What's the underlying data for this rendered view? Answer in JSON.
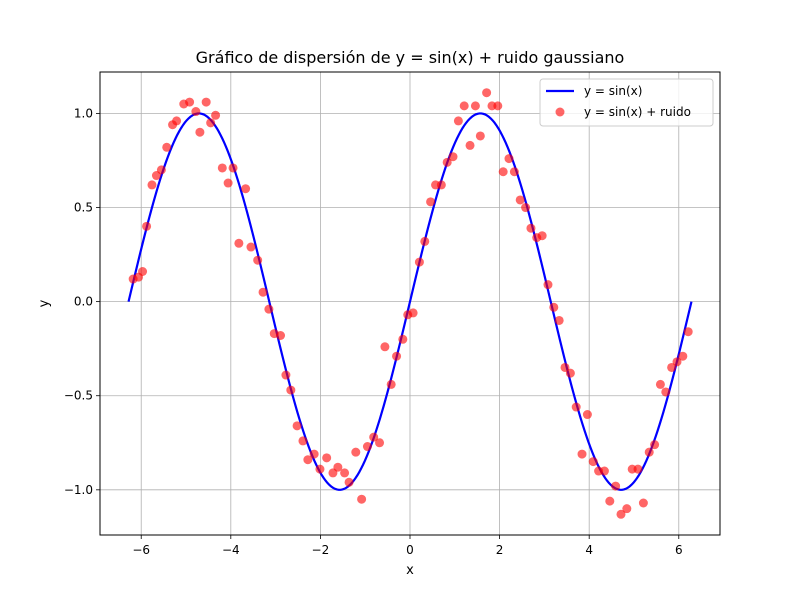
{
  "chart_data": {
    "type": "scatter",
    "title": "Gráfico de dispersión de y = sin(x) + ruido gaussiano",
    "xlabel": "x",
    "ylabel": "y",
    "xlim": [
      -6.92,
      6.92
    ],
    "ylim": [
      -1.24,
      1.22
    ],
    "x_ticks": [
      -6,
      -4,
      -2,
      0,
      2,
      4,
      6
    ],
    "x_tick_labels": [
      "−6",
      "−4",
      "−2",
      "0",
      "2",
      "4",
      "6"
    ],
    "y_ticks": [
      -1.0,
      -0.5,
      0.0,
      0.5,
      1.0
    ],
    "y_tick_labels": [
      "−1.0",
      "−0.5",
      "0.0",
      "0.5",
      "1.0"
    ],
    "grid": true,
    "legend_position": "top-right",
    "colors": {
      "line": "#0000ff",
      "scatter": "#ff0000",
      "grid": "#b0b0b0"
    },
    "series": [
      {
        "name": "y = sin(x)",
        "kind": "line",
        "function": "sin",
        "x_range": [
          -6.283,
          6.283
        ]
      },
      {
        "name": "y = sin(x) + ruido",
        "kind": "scatter",
        "points": [
          [
            -6.18,
            0.12
          ],
          [
            -6.06,
            0.13
          ],
          [
            -5.97,
            0.16
          ],
          [
            -5.88,
            0.4
          ],
          [
            -5.76,
            0.62
          ],
          [
            -5.66,
            0.67
          ],
          [
            -5.55,
            0.7
          ],
          [
            -5.43,
            0.82
          ],
          [
            -5.3,
            0.94
          ],
          [
            -5.21,
            0.96
          ],
          [
            -5.05,
            1.05
          ],
          [
            -4.92,
            1.06
          ],
          [
            -4.78,
            1.01
          ],
          [
            -4.69,
            0.9
          ],
          [
            -4.55,
            1.06
          ],
          [
            -4.45,
            0.95
          ],
          [
            -4.34,
            0.99
          ],
          [
            -4.19,
            0.71
          ],
          [
            -4.06,
            0.63
          ],
          [
            -3.95,
            0.71
          ],
          [
            -3.82,
            0.31
          ],
          [
            -3.67,
            0.6
          ],
          [
            -3.55,
            0.29
          ],
          [
            -3.4,
            0.22
          ],
          [
            -3.28,
            0.05
          ],
          [
            -3.15,
            -0.04
          ],
          [
            -3.03,
            -0.17
          ],
          [
            -2.89,
            -0.18
          ],
          [
            -2.77,
            -0.39
          ],
          [
            -2.66,
            -0.47
          ],
          [
            -2.52,
            -0.66
          ],
          [
            -2.39,
            -0.74
          ],
          [
            -2.28,
            -0.84
          ],
          [
            -2.14,
            -0.81
          ],
          [
            -2.01,
            -0.89
          ],
          [
            -1.86,
            -0.83
          ],
          [
            -1.72,
            -0.91
          ],
          [
            -1.61,
            -0.88
          ],
          [
            -1.46,
            -0.91
          ],
          [
            -1.36,
            -0.96
          ],
          [
            -1.21,
            -0.8
          ],
          [
            -1.08,
            -1.05
          ],
          [
            -0.95,
            -0.77
          ],
          [
            -0.81,
            -0.72
          ],
          [
            -0.68,
            -0.75
          ],
          [
            -0.56,
            -0.24
          ],
          [
            -0.42,
            -0.44
          ],
          [
            -0.3,
            -0.29
          ],
          [
            -0.16,
            -0.2
          ],
          [
            -0.05,
            -0.07
          ],
          [
            0.07,
            -0.06
          ],
          [
            0.21,
            0.21
          ],
          [
            0.33,
            0.32
          ],
          [
            0.46,
            0.53
          ],
          [
            0.57,
            0.62
          ],
          [
            0.7,
            0.62
          ],
          [
            0.83,
            0.74
          ],
          [
            0.96,
            0.77
          ],
          [
            1.08,
            0.96
          ],
          [
            1.21,
            1.04
          ],
          [
            1.34,
            0.83
          ],
          [
            1.46,
            1.04
          ],
          [
            1.57,
            0.88
          ],
          [
            1.71,
            1.11
          ],
          [
            1.83,
            1.04
          ],
          [
            1.96,
            1.04
          ],
          [
            2.08,
            0.69
          ],
          [
            2.21,
            0.76
          ],
          [
            2.33,
            0.69
          ],
          [
            2.46,
            0.54
          ],
          [
            2.58,
            0.5
          ],
          [
            2.7,
            0.39
          ],
          [
            2.83,
            0.34
          ],
          [
            2.95,
            0.35
          ],
          [
            3.08,
            0.09
          ],
          [
            3.21,
            -0.03
          ],
          [
            3.33,
            -0.1
          ],
          [
            3.46,
            -0.35
          ],
          [
            3.58,
            -0.38
          ],
          [
            3.71,
            -0.56
          ],
          [
            3.84,
            -0.81
          ],
          [
            3.96,
            -0.6
          ],
          [
            4.09,
            -0.85
          ],
          [
            4.21,
            -0.9
          ],
          [
            4.34,
            -0.9
          ],
          [
            4.46,
            -1.06
          ],
          [
            4.59,
            -0.98
          ],
          [
            4.71,
            -1.13
          ],
          [
            4.84,
            -1.1
          ],
          [
            4.96,
            -0.89
          ],
          [
            5.09,
            -0.89
          ],
          [
            5.21,
            -1.07
          ],
          [
            5.34,
            -0.8
          ],
          [
            5.46,
            -0.76
          ],
          [
            5.59,
            -0.44
          ],
          [
            5.71,
            -0.48
          ],
          [
            5.84,
            -0.35
          ],
          [
            5.96,
            -0.32
          ],
          [
            6.09,
            -0.29
          ],
          [
            6.21,
            -0.16
          ]
        ]
      }
    ]
  }
}
